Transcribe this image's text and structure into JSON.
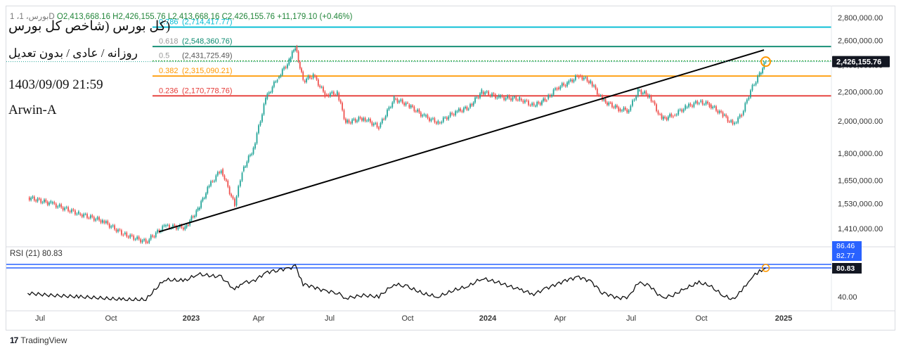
{
  "header": {
    "title": "(کل بورس (شاخص کل بورس",
    "subtitle": "روزانه / عادی / بدون تعدیل",
    "timestamp": "1403/09/09 21:59",
    "author": "Arwin-A",
    "ohlc_prefix": "1 ،بورس، 1D",
    "ohlc_o": "O2,413,668.16",
    "ohlc_h": "H2,426,155.76",
    "ohlc_l": "L2,413,668.16",
    "ohlc_c": "C2,426,155.76",
    "ohlc_change": "+11,179.10 (+0.46%)"
  },
  "branding": {
    "label": "TradingView"
  },
  "chart_data": {
    "type": "candlestick",
    "y_scale": "log",
    "price_ticks": [
      "2,800,000.00",
      "2,600,000.00",
      "2,400,000.00",
      "2,200,000.00",
      "2,000,000.00",
      "1,800,000.00",
      "1,650,000.00",
      "1,530,000.00",
      "1,410,000.00"
    ],
    "price_tick_values": [
      2800000,
      2600000,
      2400000,
      2200000,
      2000000,
      1800000,
      1650000,
      1530000,
      1410000
    ],
    "x_labels": [
      "Jul",
      "Oct",
      "2023",
      "Apr",
      "Jul",
      "Oct",
      "2024",
      "Apr",
      "Jul",
      "Oct",
      "2025"
    ],
    "x_label_dates": [
      "2022-07-01",
      "2022-10-01",
      "2023-01-01",
      "2023-04-01",
      "2023-07-01",
      "2023-10-01",
      "2024-01-01",
      "2024-04-01",
      "2024-07-01",
      "2024-10-01",
      "2025-01-01"
    ],
    "last_price": 2426155.76,
    "last_price_label": "2,426,155.76",
    "fibonacci": [
      {
        "level": "0.786",
        "label": "(2,714,417.77)",
        "value": 2714417.77,
        "color": "#00bcd4"
      },
      {
        "level": "0.618",
        "label": "(2,548,360.76)",
        "value": 2548360.76,
        "color": "#0b8a6f"
      },
      {
        "level": "0.5",
        "label": "(2,431,725.49)",
        "value": 2431725.49,
        "color": "#4caf50"
      },
      {
        "level": "0.382",
        "label": "(2,315,090.21)",
        "value": 2315090.21,
        "color": "#ff9800"
      },
      {
        "level": "0.236",
        "label": "(2,170,778.76)",
        "value": 2170778.76,
        "color": "#e53935"
      }
    ],
    "trendline": [
      {
        "date": "2022-11-25",
        "price": 1395000
      },
      {
        "date": "2024-12-10",
        "price": 2520000
      }
    ],
    "series": [
      {
        "date": "2022-06-15",
        "price": 1560000
      },
      {
        "date": "2022-07-15",
        "price": 1530000
      },
      {
        "date": "2022-08-20",
        "price": 1480000
      },
      {
        "date": "2022-09-20",
        "price": 1445000
      },
      {
        "date": "2022-10-15",
        "price": 1385000
      },
      {
        "date": "2022-11-10",
        "price": 1350000
      },
      {
        "date": "2022-12-01",
        "price": 1420000
      },
      {
        "date": "2022-12-25",
        "price": 1415000
      },
      {
        "date": "2023-01-10",
        "price": 1500000
      },
      {
        "date": "2023-01-25",
        "price": 1620000
      },
      {
        "date": "2023-02-10",
        "price": 1710000
      },
      {
        "date": "2023-02-28",
        "price": 1520000
      },
      {
        "date": "2023-03-10",
        "price": 1700000
      },
      {
        "date": "2023-03-25",
        "price": 1830000
      },
      {
        "date": "2023-04-10",
        "price": 2150000
      },
      {
        "date": "2023-04-25",
        "price": 2300000
      },
      {
        "date": "2023-05-10",
        "price": 2430000
      },
      {
        "date": "2023-05-18",
        "price": 2550000
      },
      {
        "date": "2023-05-28",
        "price": 2280000
      },
      {
        "date": "2023-06-10",
        "price": 2320000
      },
      {
        "date": "2023-06-25",
        "price": 2180000
      },
      {
        "date": "2023-07-10",
        "price": 2190000
      },
      {
        "date": "2023-07-20",
        "price": 1990000
      },
      {
        "date": "2023-08-10",
        "price": 2020000
      },
      {
        "date": "2023-08-28",
        "price": 1960000
      },
      {
        "date": "2023-09-15",
        "price": 2150000
      },
      {
        "date": "2023-10-01",
        "price": 2110000
      },
      {
        "date": "2023-10-20",
        "price": 2030000
      },
      {
        "date": "2023-11-05",
        "price": 1990000
      },
      {
        "date": "2023-11-25",
        "price": 2060000
      },
      {
        "date": "2023-12-10",
        "price": 2090000
      },
      {
        "date": "2023-12-25",
        "price": 2200000
      },
      {
        "date": "2024-01-15",
        "price": 2160000
      },
      {
        "date": "2024-02-10",
        "price": 2150000
      },
      {
        "date": "2024-02-28",
        "price": 2100000
      },
      {
        "date": "2024-03-15",
        "price": 2150000
      },
      {
        "date": "2024-03-28",
        "price": 2230000
      },
      {
        "date": "2024-04-10",
        "price": 2260000
      },
      {
        "date": "2024-04-25",
        "price": 2320000
      },
      {
        "date": "2024-05-10",
        "price": 2270000
      },
      {
        "date": "2024-05-25",
        "price": 2140000
      },
      {
        "date": "2024-06-15",
        "price": 2080000
      },
      {
        "date": "2024-06-28",
        "price": 2070000
      },
      {
        "date": "2024-07-10",
        "price": 2210000
      },
      {
        "date": "2024-07-25",
        "price": 2170000
      },
      {
        "date": "2024-08-10",
        "price": 2010000
      },
      {
        "date": "2024-08-25",
        "price": 2040000
      },
      {
        "date": "2024-09-10",
        "price": 2090000
      },
      {
        "date": "2024-09-28",
        "price": 2130000
      },
      {
        "date": "2024-10-10",
        "price": 2110000
      },
      {
        "date": "2024-10-25",
        "price": 2040000
      },
      {
        "date": "2024-11-05",
        "price": 1980000
      },
      {
        "date": "2024-11-15",
        "price": 2040000
      },
      {
        "date": "2024-11-25",
        "price": 2210000
      },
      {
        "date": "2024-12-05",
        "price": 2330000
      },
      {
        "date": "2024-12-12",
        "price": 2426155.76
      }
    ],
    "rsi": {
      "label": "RSI (21)",
      "value": 80.83,
      "value_label": "80.83",
      "level_labels": [
        "86.46",
        "82.77"
      ],
      "tick_label": "40.00",
      "series": [
        {
          "date": "2022-06-15",
          "v": 45
        },
        {
          "date": "2022-07-15",
          "v": 42
        },
        {
          "date": "2022-08-20",
          "v": 40
        },
        {
          "date": "2022-09-20",
          "v": 38
        },
        {
          "date": "2022-10-15",
          "v": 36
        },
        {
          "date": "2022-11-10",
          "v": 36
        },
        {
          "date": "2022-12-01",
          "v": 64
        },
        {
          "date": "2022-12-25",
          "v": 63
        },
        {
          "date": "2023-01-10",
          "v": 72
        },
        {
          "date": "2023-01-25",
          "v": 70
        },
        {
          "date": "2023-02-10",
          "v": 68
        },
        {
          "date": "2023-02-28",
          "v": 50
        },
        {
          "date": "2023-03-10",
          "v": 60
        },
        {
          "date": "2023-03-25",
          "v": 62
        },
        {
          "date": "2023-04-10",
          "v": 74
        },
        {
          "date": "2023-04-25",
          "v": 78
        },
        {
          "date": "2023-05-10",
          "v": 80
        },
        {
          "date": "2023-05-18",
          "v": 84
        },
        {
          "date": "2023-05-28",
          "v": 58
        },
        {
          "date": "2023-06-10",
          "v": 54
        },
        {
          "date": "2023-06-25",
          "v": 48
        },
        {
          "date": "2023-07-10",
          "v": 46
        },
        {
          "date": "2023-07-20",
          "v": 38
        },
        {
          "date": "2023-08-10",
          "v": 42
        },
        {
          "date": "2023-08-28",
          "v": 40
        },
        {
          "date": "2023-09-15",
          "v": 58
        },
        {
          "date": "2023-10-01",
          "v": 54
        },
        {
          "date": "2023-10-20",
          "v": 44
        },
        {
          "date": "2023-11-05",
          "v": 40
        },
        {
          "date": "2023-11-25",
          "v": 50
        },
        {
          "date": "2023-12-10",
          "v": 55
        },
        {
          "date": "2023-12-25",
          "v": 66
        },
        {
          "date": "2024-01-15",
          "v": 60
        },
        {
          "date": "2024-02-10",
          "v": 50
        },
        {
          "date": "2024-02-28",
          "v": 44
        },
        {
          "date": "2024-03-15",
          "v": 52
        },
        {
          "date": "2024-03-28",
          "v": 58
        },
        {
          "date": "2024-04-10",
          "v": 64
        },
        {
          "date": "2024-04-25",
          "v": 68
        },
        {
          "date": "2024-05-10",
          "v": 62
        },
        {
          "date": "2024-05-25",
          "v": 46
        },
        {
          "date": "2024-06-15",
          "v": 38
        },
        {
          "date": "2024-06-28",
          "v": 40
        },
        {
          "date": "2024-07-10",
          "v": 60
        },
        {
          "date": "2024-07-25",
          "v": 56
        },
        {
          "date": "2024-08-10",
          "v": 38
        },
        {
          "date": "2024-08-25",
          "v": 42
        },
        {
          "date": "2024-09-10",
          "v": 52
        },
        {
          "date": "2024-09-28",
          "v": 60
        },
        {
          "date": "2024-10-10",
          "v": 56
        },
        {
          "date": "2024-10-25",
          "v": 42
        },
        {
          "date": "2024-11-05",
          "v": 36
        },
        {
          "date": "2024-11-15",
          "v": 48
        },
        {
          "date": "2024-11-25",
          "v": 66
        },
        {
          "date": "2024-12-05",
          "v": 76
        },
        {
          "date": "2024-12-12",
          "v": 80.83
        }
      ]
    },
    "colors": {
      "up": "#26a69a",
      "down": "#ef5350",
      "trend": "#000000",
      "rsi": "#111111",
      "rsi_level": "#2962ff",
      "price_tag": "#131722",
      "circle": "#ff9800"
    }
  }
}
